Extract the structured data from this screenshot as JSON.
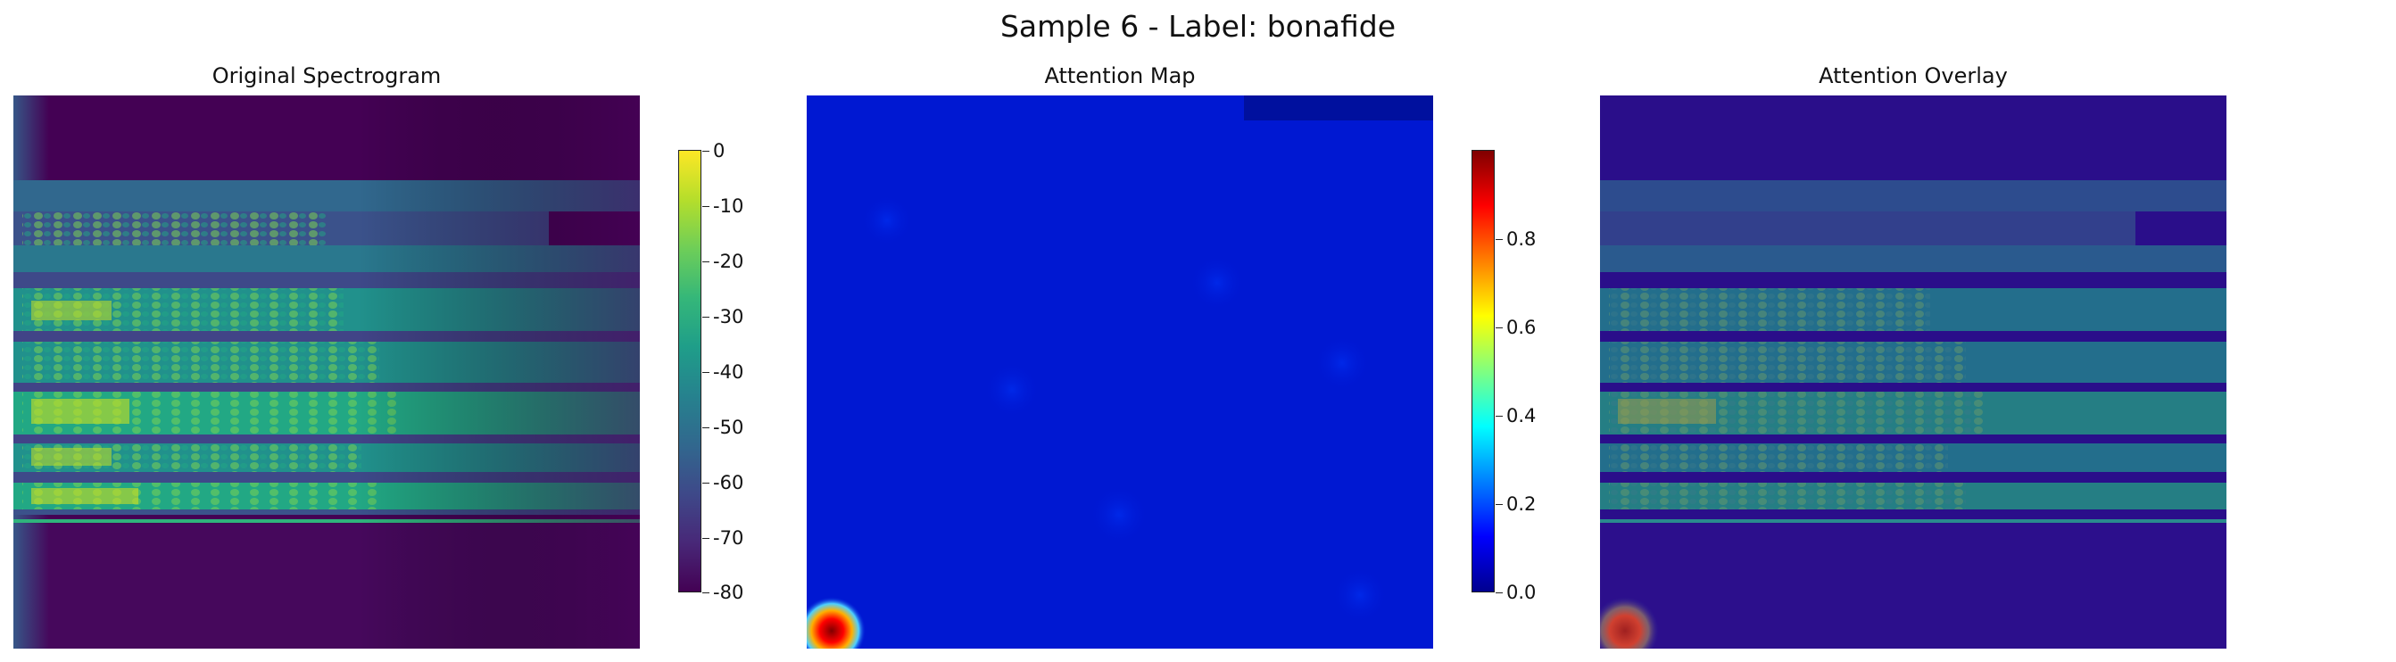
{
  "figure": {
    "title": "Sample 6 - Label: bonafide"
  },
  "chart_data": [
    {
      "type": "heatmap",
      "title": "Original Spectrogram",
      "colormap": "viridis",
      "colorbar": {
        "range": [
          -80,
          0
        ],
        "ticks": [
          0,
          -10,
          -20,
          -30,
          -40,
          -50,
          -60,
          -70,
          -80
        ]
      },
      "axes": "off"
    },
    {
      "type": "heatmap",
      "title": "Attention Map",
      "colormap": "jet",
      "colorbar": {
        "range": [
          0.0,
          1.0
        ],
        "ticks": [
          "0.0",
          "0.2",
          "0.4",
          "0.6",
          "0.8"
        ]
      },
      "axes": "off",
      "hotspot": {
        "location": "bottom-left",
        "value": 1.0
      }
    },
    {
      "type": "heatmap",
      "title": "Attention Overlay",
      "colormap": "viridis + jet overlay",
      "axes": "off"
    }
  ]
}
